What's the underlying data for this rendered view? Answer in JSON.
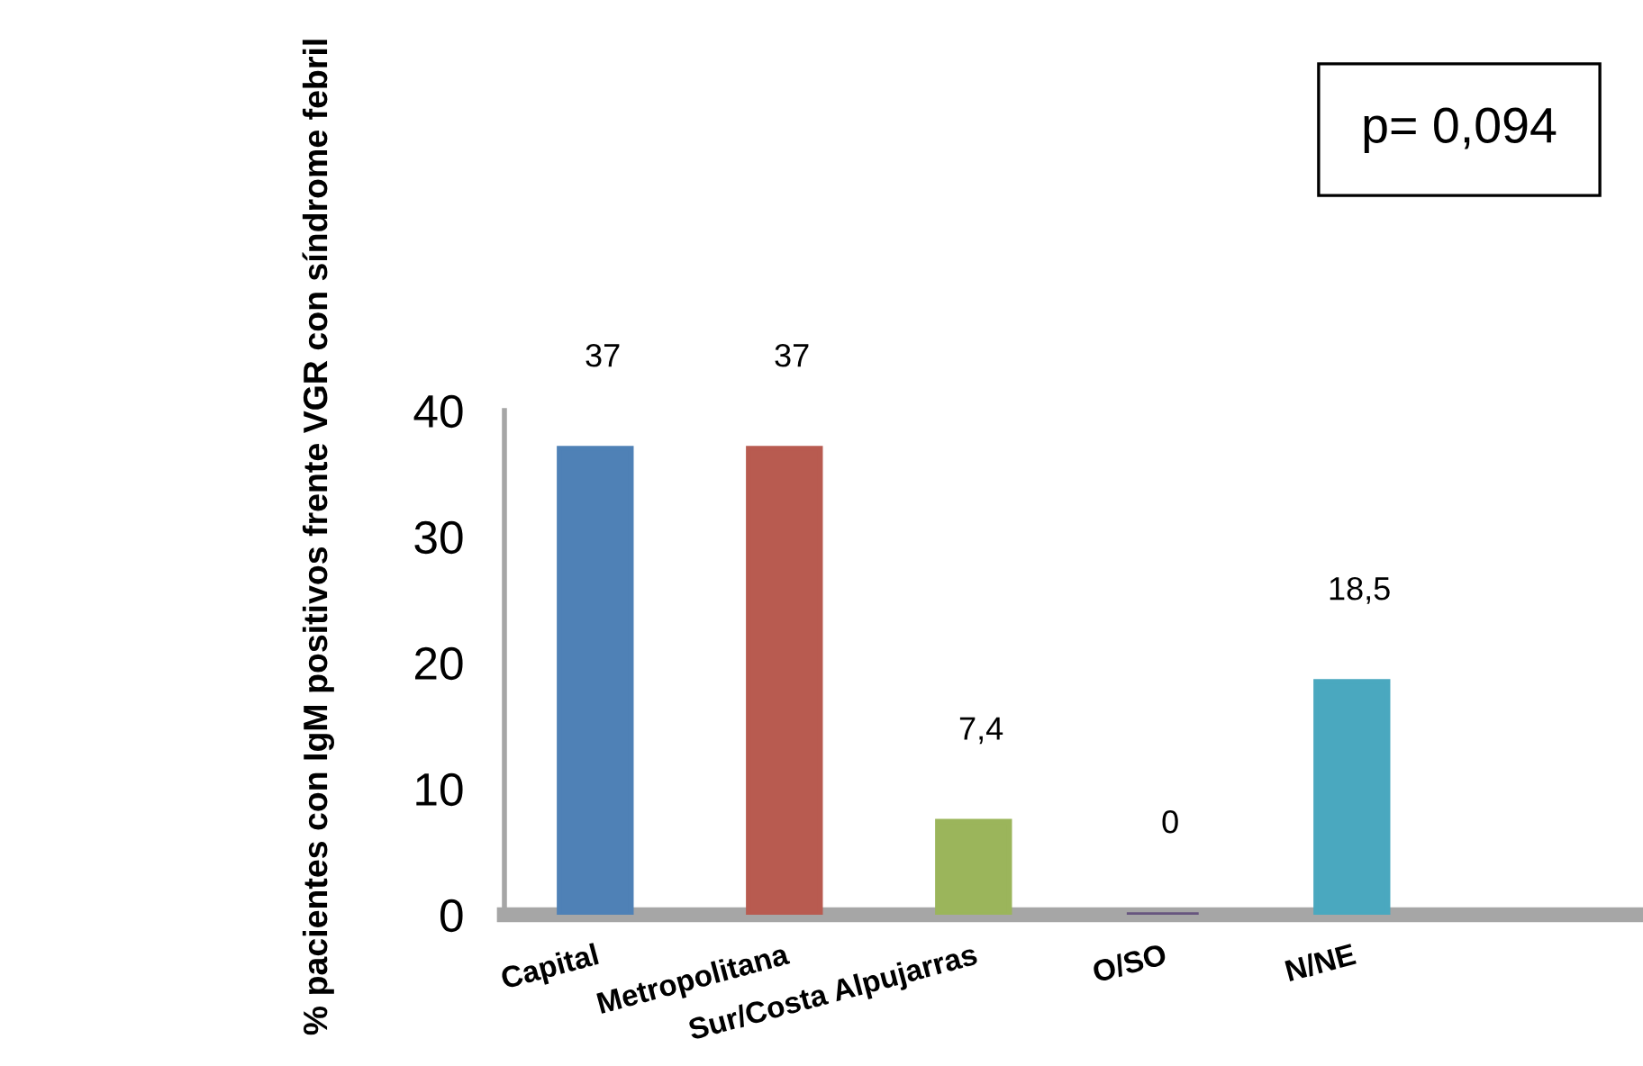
{
  "chart_data": {
    "type": "bar",
    "categories": [
      "Capital",
      "Metropolitana",
      "Sur/Costa Alpujarras",
      "O/SO",
      "N/NE"
    ],
    "values": [
      37,
      37,
      7.4,
      0,
      18.5
    ],
    "colors": [
      "#4f81b6",
      "#b85b50",
      "#9bb55b",
      "#67557f",
      "#4aa8bf"
    ],
    "value_labels": [
      "37",
      "37",
      "7,4",
      "0",
      "18,5"
    ],
    "ylabel": "% pacientes con IgM positivos frente VGR con síndrome febril",
    "ylim": [
      0,
      40
    ],
    "yticks": [
      0,
      10,
      20,
      30,
      40
    ],
    "annotations": [
      "p= 0,094"
    ],
    "grid": false
  }
}
